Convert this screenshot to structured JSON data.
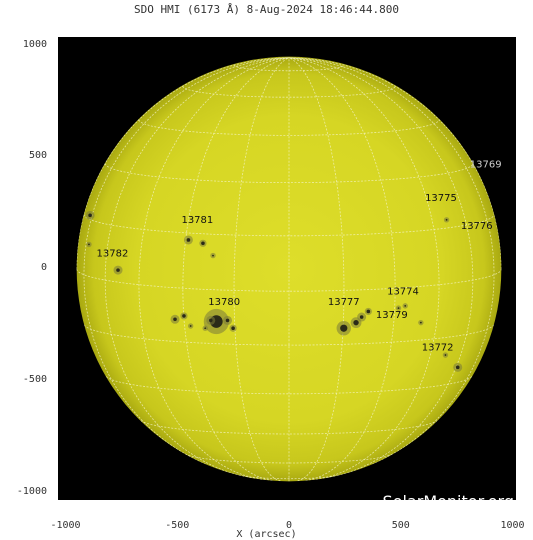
{
  "title": "SDO HMI (6173 Å)  8-Aug-2024 18:46:44.800",
  "x_axis": {
    "label": "X (arcsec)",
    "ticks": [
      "-1000",
      "-500",
      "0",
      "500",
      "1000"
    ],
    "tick_values": [
      -1000,
      -500,
      0,
      500,
      1000
    ]
  },
  "y_axis": {
    "ticks": [
      "1000",
      "500",
      "0",
      "-500",
      "-1000"
    ],
    "tick_values": [
      1000,
      500,
      0,
      -500,
      -1000
    ]
  },
  "watermark": "SolarMonitor.org",
  "colors": {
    "disk": "#d8d825",
    "background": "#000000",
    "label_dark": "#111111",
    "label_light": "#cfcfcf"
  },
  "active_regions": [
    {
      "id": "13769",
      "x": 880,
      "y": 455,
      "style": "light"
    },
    {
      "id": "13775",
      "x": 680,
      "y": 305
    },
    {
      "id": "13776",
      "x": 840,
      "y": 180
    },
    {
      "id": "13781",
      "x": -410,
      "y": 205
    },
    {
      "id": "13782",
      "x": -790,
      "y": 55
    },
    {
      "id": "13780",
      "x": -290,
      "y": -160
    },
    {
      "id": "13777",
      "x": 245,
      "y": -160
    },
    {
      "id": "13774",
      "x": 510,
      "y": -115
    },
    {
      "id": "13779",
      "x": 460,
      "y": -220
    },
    {
      "id": "13772",
      "x": 665,
      "y": -365
    }
  ],
  "sunspots": [
    {
      "x": -325,
      "y": -235,
      "r": 14,
      "rc": 7
    },
    {
      "x": -350,
      "y": -230,
      "r": 5,
      "rc": 2
    },
    {
      "x": -275,
      "y": -230,
      "r": 5,
      "rc": 2
    },
    {
      "x": -250,
      "y": -265,
      "r": 4,
      "rc": 2
    },
    {
      "x": -510,
      "y": -225,
      "r": 5,
      "rc": 2
    },
    {
      "x": -470,
      "y": -210,
      "r": 4,
      "rc": 2
    },
    {
      "x": -440,
      "y": -255,
      "r": 3,
      "rc": 1
    },
    {
      "x": -375,
      "y": -265,
      "r": 3,
      "rc": 1
    },
    {
      "x": -450,
      "y": 130,
      "r": 5,
      "rc": 2
    },
    {
      "x": -385,
      "y": 115,
      "r": 4,
      "rc": 2
    },
    {
      "x": -340,
      "y": 60,
      "r": 3,
      "rc": 1
    },
    {
      "x": -765,
      "y": -5,
      "r": 5,
      "rc": 2
    },
    {
      "x": -890,
      "y": 240,
      "r": 5,
      "rc": 2
    },
    {
      "x": -895,
      "y": 110,
      "r": 3,
      "rc": 1
    },
    {
      "x": 245,
      "y": -265,
      "r": 8,
      "rc": 4
    },
    {
      "x": 300,
      "y": -240,
      "r": 6,
      "rc": 3
    },
    {
      "x": 325,
      "y": -215,
      "r": 5,
      "rc": 2
    },
    {
      "x": 355,
      "y": -190,
      "r": 4,
      "rc": 2
    },
    {
      "x": 490,
      "y": -175,
      "r": 3,
      "rc": 1
    },
    {
      "x": 520,
      "y": -165,
      "r": 3,
      "rc": 1
    },
    {
      "x": 705,
      "y": 220,
      "r": 3,
      "rc": 1
    },
    {
      "x": 755,
      "y": -440,
      "r": 5,
      "rc": 2
    },
    {
      "x": 700,
      "y": -385,
      "r": 3,
      "rc": 1
    },
    {
      "x": 590,
      "y": -240,
      "r": 3,
      "rc": 1
    }
  ]
}
